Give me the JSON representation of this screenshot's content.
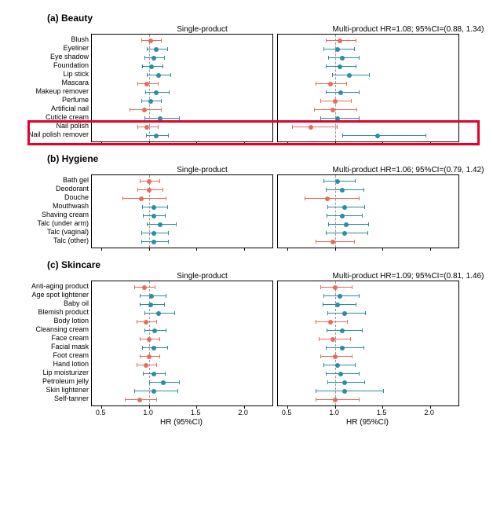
{
  "colors": {
    "red": "#e86b5c",
    "teal": "#2b8ca3",
    "highlight": "#e4002b",
    "axis": "#000000",
    "refline": "#999999"
  },
  "xaxis": {
    "ticks": [
      0.5,
      1.0,
      1.5,
      2.0
    ],
    "label": "HR (95%CI)",
    "min": 0.4,
    "max": 2.3
  },
  "panels": [
    {
      "id": "beauty",
      "title": "(a) Beauty",
      "left_title": "Single-product",
      "right_title": "Multi-product HR=1.08; 95%CI=(0.88, 1.34)",
      "rows": [
        {
          "label": "Blush",
          "l": {
            "hr": 1.02,
            "lo": 0.92,
            "hi": 1.13,
            "c": "red"
          },
          "r": {
            "hr": 1.05,
            "lo": 0.9,
            "hi": 1.22,
            "c": "red"
          }
        },
        {
          "label": "Eyeliner",
          "l": {
            "hr": 1.08,
            "lo": 0.98,
            "hi": 1.19,
            "c": "teal"
          },
          "r": {
            "hr": 1.03,
            "lo": 0.88,
            "hi": 1.2,
            "c": "teal"
          }
        },
        {
          "label": "Eye shadow",
          "l": {
            "hr": 1.05,
            "lo": 0.95,
            "hi": 1.16,
            "c": "teal"
          },
          "r": {
            "hr": 1.08,
            "lo": 0.93,
            "hi": 1.25,
            "c": "teal"
          }
        },
        {
          "label": "Foundation",
          "l": {
            "hr": 1.03,
            "lo": 0.93,
            "hi": 1.14,
            "c": "teal"
          },
          "r": {
            "hr": 1.05,
            "lo": 0.9,
            "hi": 1.22,
            "c": "teal"
          }
        },
        {
          "label": "Lip stick",
          "l": {
            "hr": 1.1,
            "lo": 0.98,
            "hi": 1.23,
            "c": "teal"
          },
          "r": {
            "hr": 1.15,
            "lo": 0.97,
            "hi": 1.36,
            "c": "teal"
          }
        },
        {
          "label": "Mascara",
          "l": {
            "hr": 0.98,
            "lo": 0.88,
            "hi": 1.09,
            "c": "red"
          },
          "r": {
            "hr": 0.95,
            "lo": 0.8,
            "hi": 1.12,
            "c": "red"
          }
        },
        {
          "label": "Makeup remover",
          "l": {
            "hr": 1.08,
            "lo": 0.96,
            "hi": 1.21,
            "c": "teal"
          },
          "r": {
            "hr": 1.06,
            "lo": 0.9,
            "hi": 1.25,
            "c": "teal"
          }
        },
        {
          "label": "Perfume",
          "l": {
            "hr": 1.02,
            "lo": 0.92,
            "hi": 1.13,
            "c": "teal"
          },
          "r": {
            "hr": 1.0,
            "lo": 0.85,
            "hi": 1.17,
            "c": "red"
          }
        },
        {
          "label": "Artificial nail",
          "l": {
            "hr": 0.95,
            "lo": 0.8,
            "hi": 1.13,
            "c": "red"
          },
          "r": {
            "hr": 0.98,
            "lo": 0.78,
            "hi": 1.23,
            "c": "red"
          }
        },
        {
          "label": "Cuticle cream",
          "l": {
            "hr": 1.12,
            "lo": 0.95,
            "hi": 1.32,
            "c": "teal"
          },
          "r": {
            "hr": 1.03,
            "lo": 0.85,
            "hi": 1.25,
            "c": "teal"
          }
        },
        {
          "label": "Nail polish",
          "l": {
            "hr": 0.98,
            "lo": 0.88,
            "hi": 1.09,
            "c": "red"
          },
          "r": {
            "hr": 0.75,
            "lo": 0.55,
            "hi": 1.02,
            "c": "red"
          }
        },
        {
          "label": "Nail polish remover",
          "l": {
            "hr": 1.08,
            "lo": 0.97,
            "hi": 1.2,
            "c": "teal"
          },
          "r": {
            "hr": 1.45,
            "lo": 1.08,
            "hi": 1.95,
            "c": "teal"
          }
        }
      ],
      "highlight_rows": [
        10,
        11
      ]
    },
    {
      "id": "hygiene",
      "title": "(b) Hygiene",
      "left_title": "Single-product",
      "right_title": "Multi-product HR=1.06; 95%CI=(0.79, 1.42)",
      "rows": [
        {
          "label": "Bath gel",
          "l": {
            "hr": 1.0,
            "lo": 0.9,
            "hi": 1.11,
            "c": "red"
          },
          "r": {
            "hr": 1.03,
            "lo": 0.88,
            "hi": 1.21,
            "c": "teal"
          }
        },
        {
          "label": "Deodorant",
          "l": {
            "hr": 1.0,
            "lo": 0.88,
            "hi": 1.14,
            "c": "red"
          },
          "r": {
            "hr": 1.08,
            "lo": 0.9,
            "hi": 1.3,
            "c": "teal"
          }
        },
        {
          "label": "Douche",
          "l": {
            "hr": 0.92,
            "lo": 0.72,
            "hi": 1.18,
            "c": "red"
          },
          "r": {
            "hr": 0.92,
            "lo": 0.68,
            "hi": 1.25,
            "c": "red"
          }
        },
        {
          "label": "Mouthwash",
          "l": {
            "hr": 1.05,
            "lo": 0.93,
            "hi": 1.19,
            "c": "teal"
          },
          "r": {
            "hr": 1.1,
            "lo": 0.92,
            "hi": 1.31,
            "c": "teal"
          }
        },
        {
          "label": "Shaving cream",
          "l": {
            "hr": 1.05,
            "lo": 0.94,
            "hi": 1.17,
            "c": "teal"
          },
          "r": {
            "hr": 1.08,
            "lo": 0.91,
            "hi": 1.28,
            "c": "teal"
          }
        },
        {
          "label": "Talc (under arm)",
          "l": {
            "hr": 1.12,
            "lo": 0.98,
            "hi": 1.28,
            "c": "teal"
          },
          "r": {
            "hr": 1.12,
            "lo": 0.93,
            "hi": 1.35,
            "c": "teal"
          }
        },
        {
          "label": "Talc (vaginal)",
          "l": {
            "hr": 1.05,
            "lo": 0.92,
            "hi": 1.2,
            "c": "teal"
          },
          "r": {
            "hr": 1.1,
            "lo": 0.9,
            "hi": 1.34,
            "c": "teal"
          }
        },
        {
          "label": "Talc (other)",
          "l": {
            "hr": 1.05,
            "lo": 0.92,
            "hi": 1.2,
            "c": "teal"
          },
          "r": {
            "hr": 0.98,
            "lo": 0.8,
            "hi": 1.2,
            "c": "red"
          }
        }
      ]
    },
    {
      "id": "skincare",
      "title": "(c) Skincare",
      "left_title": "Single-product",
      "right_title": "Multi-product HR=1.09; 95%CI=(0.81, 1.46)",
      "rows": [
        {
          "label": "Anti-aging product",
          "l": {
            "hr": 0.95,
            "lo": 0.85,
            "hi": 1.06,
            "c": "red"
          },
          "r": {
            "hr": 1.0,
            "lo": 0.85,
            "hi": 1.18,
            "c": "red"
          }
        },
        {
          "label": "Age spot lightener",
          "l": {
            "hr": 1.03,
            "lo": 0.9,
            "hi": 1.18,
            "c": "teal"
          },
          "r": {
            "hr": 1.05,
            "lo": 0.88,
            "hi": 1.25,
            "c": "teal"
          }
        },
        {
          "label": "Baby oil",
          "l": {
            "hr": 1.02,
            "lo": 0.9,
            "hi": 1.16,
            "c": "teal"
          },
          "r": {
            "hr": 1.03,
            "lo": 0.87,
            "hi": 1.22,
            "c": "teal"
          }
        },
        {
          "label": "Blemish product",
          "l": {
            "hr": 1.1,
            "lo": 0.95,
            "hi": 1.27,
            "c": "teal"
          },
          "r": {
            "hr": 1.1,
            "lo": 0.92,
            "hi": 1.32,
            "c": "teal"
          }
        },
        {
          "label": "Body lotion",
          "l": {
            "hr": 0.97,
            "lo": 0.87,
            "hi": 1.08,
            "c": "red"
          },
          "r": {
            "hr": 0.95,
            "lo": 0.8,
            "hi": 1.13,
            "c": "red"
          }
        },
        {
          "label": "Cleansing cream",
          "l": {
            "hr": 1.06,
            "lo": 0.95,
            "hi": 1.18,
            "c": "teal"
          },
          "r": {
            "hr": 1.08,
            "lo": 0.91,
            "hi": 1.28,
            "c": "teal"
          }
        },
        {
          "label": "Face cream",
          "l": {
            "hr": 1.0,
            "lo": 0.9,
            "hi": 1.11,
            "c": "red"
          },
          "r": {
            "hr": 0.98,
            "lo": 0.83,
            "hi": 1.16,
            "c": "red"
          }
        },
        {
          "label": "Facial mask",
          "l": {
            "hr": 1.05,
            "lo": 0.93,
            "hi": 1.19,
            "c": "teal"
          },
          "r": {
            "hr": 1.08,
            "lo": 0.9,
            "hi": 1.3,
            "c": "teal"
          }
        },
        {
          "label": "Foot cream",
          "l": {
            "hr": 1.0,
            "lo": 0.9,
            "hi": 1.11,
            "c": "red"
          },
          "r": {
            "hr": 1.0,
            "lo": 0.85,
            "hi": 1.18,
            "c": "red"
          }
        },
        {
          "label": "Hand lotion",
          "l": {
            "hr": 0.97,
            "lo": 0.87,
            "hi": 1.08,
            "c": "red"
          },
          "r": {
            "hr": 1.03,
            "lo": 0.88,
            "hi": 1.21,
            "c": "teal"
          }
        },
        {
          "label": "Lip moisturizer",
          "l": {
            "hr": 1.05,
            "lo": 0.94,
            "hi": 1.17,
            "c": "teal"
          },
          "r": {
            "hr": 1.06,
            "lo": 0.9,
            "hi": 1.25,
            "c": "teal"
          }
        },
        {
          "label": "Petroleum jelly",
          "l": {
            "hr": 1.15,
            "lo": 1.0,
            "hi": 1.32,
            "c": "teal"
          },
          "r": {
            "hr": 1.1,
            "lo": 0.92,
            "hi": 1.31,
            "c": "teal"
          }
        },
        {
          "label": "Skin lightener",
          "l": {
            "hr": 1.05,
            "lo": 0.85,
            "hi": 1.3,
            "c": "teal"
          },
          "r": {
            "hr": 1.1,
            "lo": 0.8,
            "hi": 1.51,
            "c": "teal"
          }
        },
        {
          "label": "Self-tanner",
          "l": {
            "hr": 0.9,
            "lo": 0.75,
            "hi": 1.08,
            "c": "red"
          },
          "r": {
            "hr": 1.0,
            "lo": 0.8,
            "hi": 1.25,
            "c": "red"
          }
        }
      ]
    }
  ]
}
